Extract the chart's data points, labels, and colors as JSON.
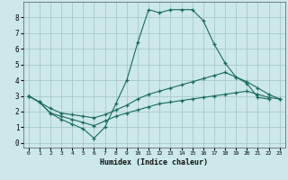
{
  "xlabel": "Humidex (Indice chaleur)",
  "bg_color": "#cce8e8",
  "grid_color": "#a8c8c8",
  "line_color": "#1a6b5a",
  "xlim": [
    -0.5,
    23.5
  ],
  "ylim": [
    -0.3,
    9.0
  ],
  "yticks": [
    0,
    1,
    2,
    3,
    4,
    5,
    6,
    7,
    8
  ],
  "xticks": [
    0,
    1,
    2,
    3,
    4,
    5,
    6,
    7,
    8,
    9,
    10,
    11,
    12,
    13,
    14,
    15,
    16,
    17,
    18,
    19,
    20,
    21,
    22,
    23
  ],
  "line1_x": [
    0,
    1,
    2,
    3,
    4,
    5,
    6,
    7,
    8,
    9,
    10,
    11,
    12,
    13,
    14,
    15,
    16,
    17,
    18,
    19,
    20,
    21,
    22
  ],
  "line1_y": [
    3.0,
    2.6,
    1.9,
    1.5,
    1.2,
    0.9,
    0.3,
    1.0,
    2.5,
    4.0,
    6.4,
    8.5,
    8.3,
    8.5,
    8.5,
    8.5,
    7.8,
    6.3,
    5.1,
    4.2,
    3.8,
    2.9,
    2.8
  ],
  "line2_x": [
    0,
    1,
    2,
    3,
    4,
    5,
    6,
    7,
    8,
    9,
    10,
    11,
    12,
    13,
    14,
    15,
    16,
    17,
    18,
    19,
    20,
    21,
    22,
    23
  ],
  "line2_y": [
    3.0,
    2.6,
    2.2,
    1.9,
    1.8,
    1.7,
    1.6,
    1.8,
    2.1,
    2.4,
    2.8,
    3.1,
    3.3,
    3.5,
    3.7,
    3.9,
    4.1,
    4.3,
    4.5,
    4.2,
    3.9,
    3.5,
    3.1,
    2.8
  ],
  "line3_x": [
    0,
    1,
    2,
    3,
    4,
    5,
    6,
    7,
    8,
    9,
    10,
    11,
    12,
    13,
    14,
    15,
    16,
    17,
    18,
    19,
    20,
    21,
    22,
    23
  ],
  "line3_y": [
    3.0,
    2.6,
    1.9,
    1.7,
    1.5,
    1.3,
    1.1,
    1.4,
    1.7,
    1.9,
    2.1,
    2.3,
    2.5,
    2.6,
    2.7,
    2.8,
    2.9,
    3.0,
    3.1,
    3.2,
    3.3,
    3.1,
    2.9,
    2.8
  ]
}
